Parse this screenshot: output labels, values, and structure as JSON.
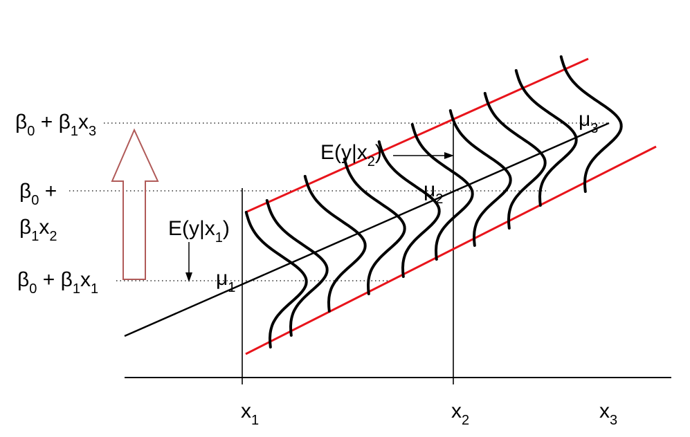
{
  "labels": {
    "y_b3": {
      "beta": "β",
      "sub0": "0",
      "mid": " + β",
      "sub1": "1",
      "x": "x",
      "sub_x": "3"
    },
    "y_b2_line1": {
      "beta": "β",
      "sub0": "0",
      "mid": " +"
    },
    "y_b2_line2": {
      "beta": "β",
      "sub1": "1",
      "x": "x",
      "sub_x": "2"
    },
    "y_b1": {
      "beta": "β",
      "sub0": "0",
      "mid": " + β",
      "sub1": "1",
      "x": "x",
      "sub_x": "1"
    },
    "e1": {
      "pre": "E(y|x",
      "sub": "1",
      "post": ")"
    },
    "e2": {
      "pre": "E(y|x",
      "sub": "2",
      "post": ")"
    },
    "mu1": {
      "mu": "μ",
      "sub": "1"
    },
    "mu2": {
      "mu": "μ",
      "sub": "2"
    },
    "mu3": {
      "mu": "μ",
      "sub": "3"
    },
    "x1": {
      "x": "x",
      "sub": "1"
    },
    "x2": {
      "x": "x",
      "sub": "2"
    },
    "x3": {
      "x": "x",
      "sub": "3"
    }
  },
  "colors": {
    "band_lines": "#e8141b",
    "arrow_outline": "#b05a58",
    "ink": "#000000"
  }
}
